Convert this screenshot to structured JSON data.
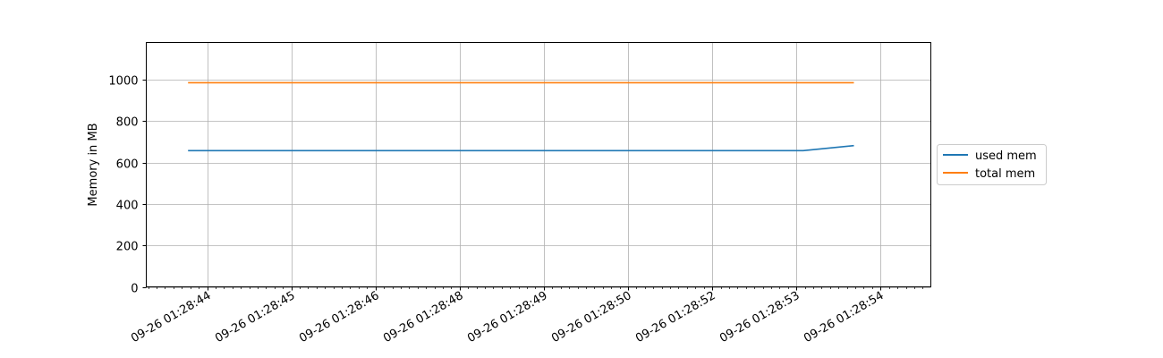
{
  "chart_data": {
    "type": "line",
    "title": "",
    "xlabel": "",
    "ylabel": "Memory in MB",
    "x_tick_labels": [
      "09-26 01:28:44",
      "09-26 01:28:45",
      "09-26 01:28:46",
      "09-26 01:28:48",
      "09-26 01:28:49",
      "09-26 01:28:50",
      "09-26 01:28:52",
      "09-26 01:28:53",
      "09-26 01:28:54"
    ],
    "y_ticks": [
      0,
      200,
      400,
      600,
      800,
      1000
    ],
    "ylim": [
      0,
      1180
    ],
    "grid": true,
    "legend_position": "right, outside the plot area",
    "series": [
      {
        "name": "used mem",
        "color": "#1f77b4",
        "x": [
          "09-26 01:28:43.7",
          "09-26 01:28:53.4",
          "09-26 01:28:54.2"
        ],
        "values": [
          658,
          658,
          682
        ]
      },
      {
        "name": "total mem",
        "color": "#ff7f0e",
        "x": [
          "09-26 01:28:43.7",
          "09-26 01:28:54.2"
        ],
        "values": [
          986,
          986
        ]
      }
    ]
  }
}
